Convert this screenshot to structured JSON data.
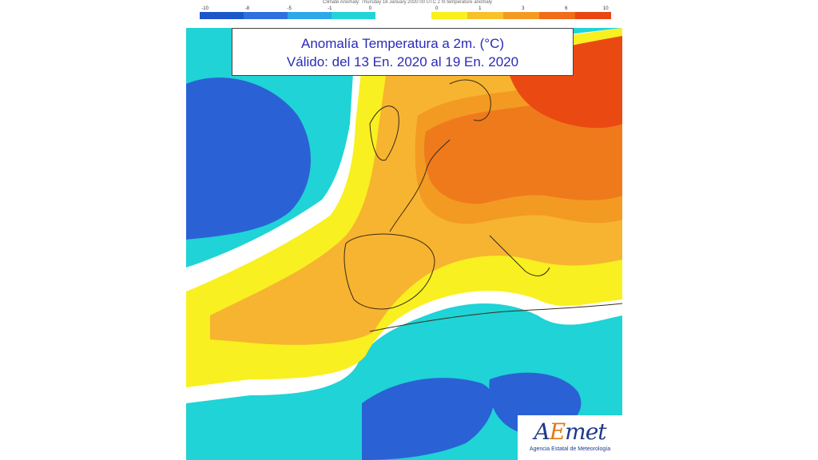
{
  "scale_header": "Climate Anomaly: Thursday 16 January 2020 00 UTC 2 m temperature anomaly",
  "legend": {
    "cold_ticks": [
      "-10",
      "-8",
      "-5",
      "-1",
      "0"
    ],
    "warm_ticks": [
      "0",
      "1",
      "3",
      "6",
      "10"
    ],
    "cold_colors": [
      "#1e56c9",
      "#2f6fe0",
      "#2fa7ea",
      "#22d4d8"
    ],
    "warm_colors": [
      "#f9f11c",
      "#f7c12a",
      "#f49a22",
      "#f06c18",
      "#e94612"
    ]
  },
  "title": {
    "line1": "Anomalía Temperatura a 2m. (°C)",
    "line2": "Válido: del 13 En. 2020 al 19 En. 2020"
  },
  "logo": {
    "mark_start": "A",
    "mark_accent": "E",
    "mark_end": "met",
    "subtitle": "Agencia Estatal de Meteorología"
  },
  "colors": {
    "deep_blue": "#2a62d6",
    "cyan": "#1fd3d6",
    "white": "#ffffff",
    "yellow": "#f8f020",
    "light_orange": "#f7b430",
    "orange": "#f39a22",
    "dark_orange": "#ef7a1c",
    "red": "#ea4a12",
    "coastline": "#3a2a1a"
  }
}
